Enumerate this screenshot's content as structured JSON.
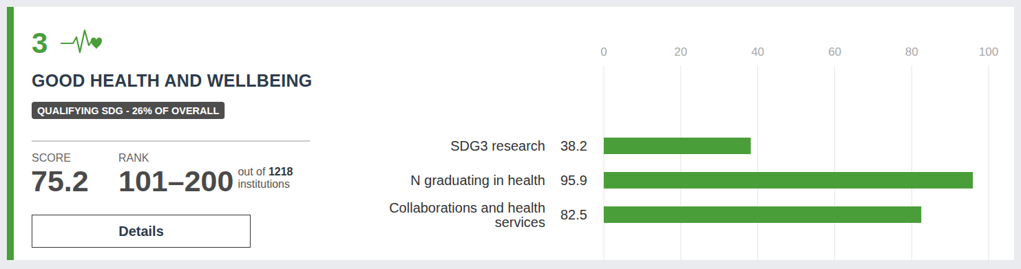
{
  "card": {
    "sdg_number": "3",
    "title": "GOOD HEALTH AND WELLBEING",
    "badge": "QUALIFYING SDG - 26% OF OVERALL",
    "score_label": "SCORE",
    "score": "75.2",
    "rank_label": "RANK",
    "rank": "101–200",
    "rank_out_of": "out of",
    "rank_total": "1218",
    "rank_unit": "institutions",
    "button": "Details"
  },
  "chart_data": {
    "type": "bar",
    "orientation": "horizontal",
    "categories": [
      "SDG3 research",
      "N graduating in health",
      "Collaborations and health services"
    ],
    "values": [
      38.2,
      95.9,
      82.5
    ],
    "color": "#4a9e3a",
    "xlim": [
      0,
      100
    ],
    "xticks": [
      0,
      20,
      40,
      60,
      80,
      100
    ],
    "grid": true,
    "data_labels": true
  }
}
